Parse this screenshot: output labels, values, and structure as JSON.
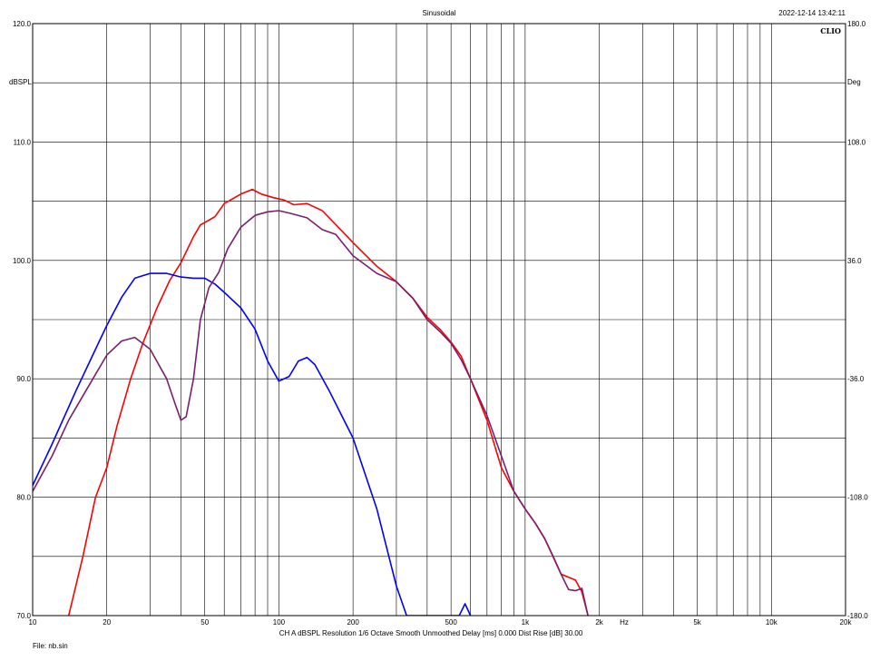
{
  "header": {
    "title": "Sinusoidal",
    "timestamp": "2022-12-14 13:42:11",
    "brand": "CLIO"
  },
  "footer": {
    "settings": "CH A   dBSPL   Resolution 1/6 Octave   Smooth Unmoothed   Delay [ms] 0.000   Dist Rise [dB] 30.00",
    "file": "File: nb.sin"
  },
  "chart_data": {
    "type": "line",
    "title": "Sinusoidal",
    "xlabel": "Hz",
    "ylabel": "dBSPL",
    "y2label": "Deg",
    "xscale": "log",
    "xlim": [
      10,
      20000
    ],
    "ylim": [
      70,
      120
    ],
    "y2lim": [
      -180,
      180
    ],
    "grid": true,
    "x_ticks": [
      {
        "value": 10,
        "label": "10"
      },
      {
        "value": 20,
        "label": "20"
      },
      {
        "value": 50,
        "label": "50"
      },
      {
        "value": 100,
        "label": "100"
      },
      {
        "value": 200,
        "label": "200"
      },
      {
        "value": 500,
        "label": "500"
      },
      {
        "value": 1000,
        "label": "1k"
      },
      {
        "value": 2000,
        "label": "2k"
      },
      {
        "value": 5000,
        "label": "5k"
      },
      {
        "value": 10000,
        "label": "10k"
      },
      {
        "value": 20000,
        "label": "20k"
      }
    ],
    "y_ticks": [
      {
        "value": 70,
        "label": "70.0"
      },
      {
        "value": 80,
        "label": "80.0"
      },
      {
        "value": 90,
        "label": "90.0"
      },
      {
        "value": 100,
        "label": "100.0"
      },
      {
        "value": 110,
        "label": "110.0"
      },
      {
        "value": 120,
        "label": "120.0"
      }
    ],
    "y2_ticks": [
      {
        "value": -180,
        "label": "-180.0"
      },
      {
        "value": -108,
        "label": "-108.0"
      },
      {
        "value": -36,
        "label": "-36.0"
      },
      {
        "value": 36,
        "label": "36.0"
      },
      {
        "value": 108,
        "label": "108.0"
      },
      {
        "value": 180,
        "label": "180.0"
      }
    ],
    "series": [
      {
        "color": "#ff0000",
        "points": [
          [
            14,
            70
          ],
          [
            16,
            75
          ],
          [
            18,
            80
          ],
          [
            20,
            82.5
          ],
          [
            22,
            86
          ],
          [
            25,
            90
          ],
          [
            28,
            93
          ],
          [
            32,
            96
          ],
          [
            36,
            98.3
          ],
          [
            40,
            99.8
          ],
          [
            45,
            102
          ],
          [
            48,
            103
          ],
          [
            52,
            103.4
          ],
          [
            55,
            103.7
          ],
          [
            60,
            104.8
          ],
          [
            70,
            105.6
          ],
          [
            78,
            106
          ],
          [
            85,
            105.6
          ],
          [
            95,
            105.3
          ],
          [
            105,
            105.1
          ],
          [
            115,
            104.7
          ],
          [
            130,
            104.8
          ],
          [
            150,
            104.2
          ],
          [
            180,
            102.5
          ],
          [
            200,
            101.5
          ],
          [
            250,
            99.5
          ],
          [
            300,
            98.2
          ],
          [
            350,
            96.8
          ],
          [
            400,
            95.2
          ],
          [
            450,
            94.2
          ],
          [
            500,
            93.1
          ],
          [
            550,
            91.9
          ],
          [
            600,
            90
          ],
          [
            700,
            86.5
          ],
          [
            800,
            82.5
          ],
          [
            900,
            80.5
          ],
          [
            1000,
            79
          ],
          [
            1100,
            77.8
          ],
          [
            1200,
            76.5
          ],
          [
            1400,
            73.5
          ],
          [
            1600,
            73
          ],
          [
            1700,
            72
          ],
          [
            1800,
            70
          ]
        ]
      },
      {
        "color": "#0000ff",
        "points": [
          [
            10,
            81
          ],
          [
            12,
            84.5
          ],
          [
            15,
            89
          ],
          [
            18,
            92.5
          ],
          [
            20,
            94.5
          ],
          [
            23,
            96.9
          ],
          [
            26,
            98.5
          ],
          [
            30,
            98.9
          ],
          [
            35,
            98.9
          ],
          [
            40,
            98.6
          ],
          [
            45,
            98.5
          ],
          [
            50,
            98.5
          ],
          [
            55,
            98
          ],
          [
            60,
            97.3
          ],
          [
            70,
            96
          ],
          [
            80,
            94.2
          ],
          [
            90,
            91.5
          ],
          [
            100,
            89.8
          ],
          [
            110,
            90.2
          ],
          [
            120,
            91.5
          ],
          [
            130,
            91.8
          ],
          [
            140,
            91.2
          ],
          [
            160,
            89
          ],
          [
            200,
            85
          ],
          [
            250,
            79
          ],
          [
            300,
            72.5
          ],
          [
            330,
            70
          ],
          [
            540,
            70
          ],
          [
            570,
            71
          ],
          [
            600,
            70
          ]
        ]
      },
      {
        "color": "#7a1f6e",
        "points": [
          [
            10,
            80.5
          ],
          [
            12,
            83.5
          ],
          [
            14,
            86.5
          ],
          [
            17,
            89.5
          ],
          [
            20,
            92
          ],
          [
            23,
            93.2
          ],
          [
            26,
            93.5
          ],
          [
            30,
            92.5
          ],
          [
            35,
            90
          ],
          [
            38,
            87.8
          ],
          [
            40,
            86.5
          ],
          [
            42,
            86.8
          ],
          [
            45,
            90
          ],
          [
            48,
            95
          ],
          [
            52,
            97.7
          ],
          [
            57,
            99
          ],
          [
            62,
            101
          ],
          [
            70,
            102.8
          ],
          [
            80,
            103.8
          ],
          [
            90,
            104.1
          ],
          [
            100,
            104.2
          ],
          [
            110,
            104
          ],
          [
            130,
            103.6
          ],
          [
            150,
            102.6
          ],
          [
            170,
            102.2
          ],
          [
            200,
            100.4
          ],
          [
            250,
            98.9
          ],
          [
            300,
            98.2
          ],
          [
            350,
            96.8
          ],
          [
            400,
            95
          ],
          [
            450,
            94
          ],
          [
            500,
            93
          ],
          [
            550,
            91.6
          ],
          [
            600,
            90
          ],
          [
            700,
            86.9
          ],
          [
            800,
            83.5
          ],
          [
            900,
            80.5
          ],
          [
            1000,
            79
          ],
          [
            1100,
            77.8
          ],
          [
            1200,
            76.5
          ],
          [
            1300,
            75
          ],
          [
            1400,
            73.5
          ],
          [
            1500,
            72.2
          ],
          [
            1600,
            72.1
          ],
          [
            1700,
            72.3
          ],
          [
            1800,
            70
          ]
        ]
      }
    ]
  }
}
